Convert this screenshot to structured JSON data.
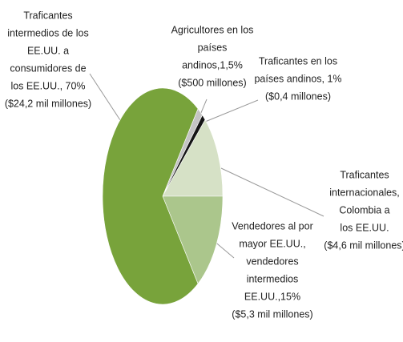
{
  "chart_data": {
    "type": "pie",
    "categories": [
      [
        "Agricultores en los",
        "países",
        "andinos,1,5%",
        "($500 millones)"
      ],
      [
        "Traficantes en los",
        "países andinos, 1%",
        "($0,4 millones)"
      ],
      [
        "Traficantes",
        "internacionales,",
        "Colombia a",
        "los EE.UU.",
        "($4,6 mil millones)"
      ],
      [
        "Vendedores al por",
        "mayor EE.UU.,",
        "vendedores",
        "intermedios",
        "EE.UU.,15%",
        "($5,3 mil millones)"
      ],
      [
        "Traficantes",
        "intermedios de los",
        "EE.UU. a",
        "consumidores de",
        "los EE.UU., 70%",
        "($24,2 mil millones)"
      ]
    ],
    "values": [
      1.5,
      1,
      12.5,
      15,
      70
    ],
    "colors": [
      "#c4c4c4",
      "#151515",
      "#d6e1c6",
      "#abc68c",
      "#78a33b"
    ]
  }
}
